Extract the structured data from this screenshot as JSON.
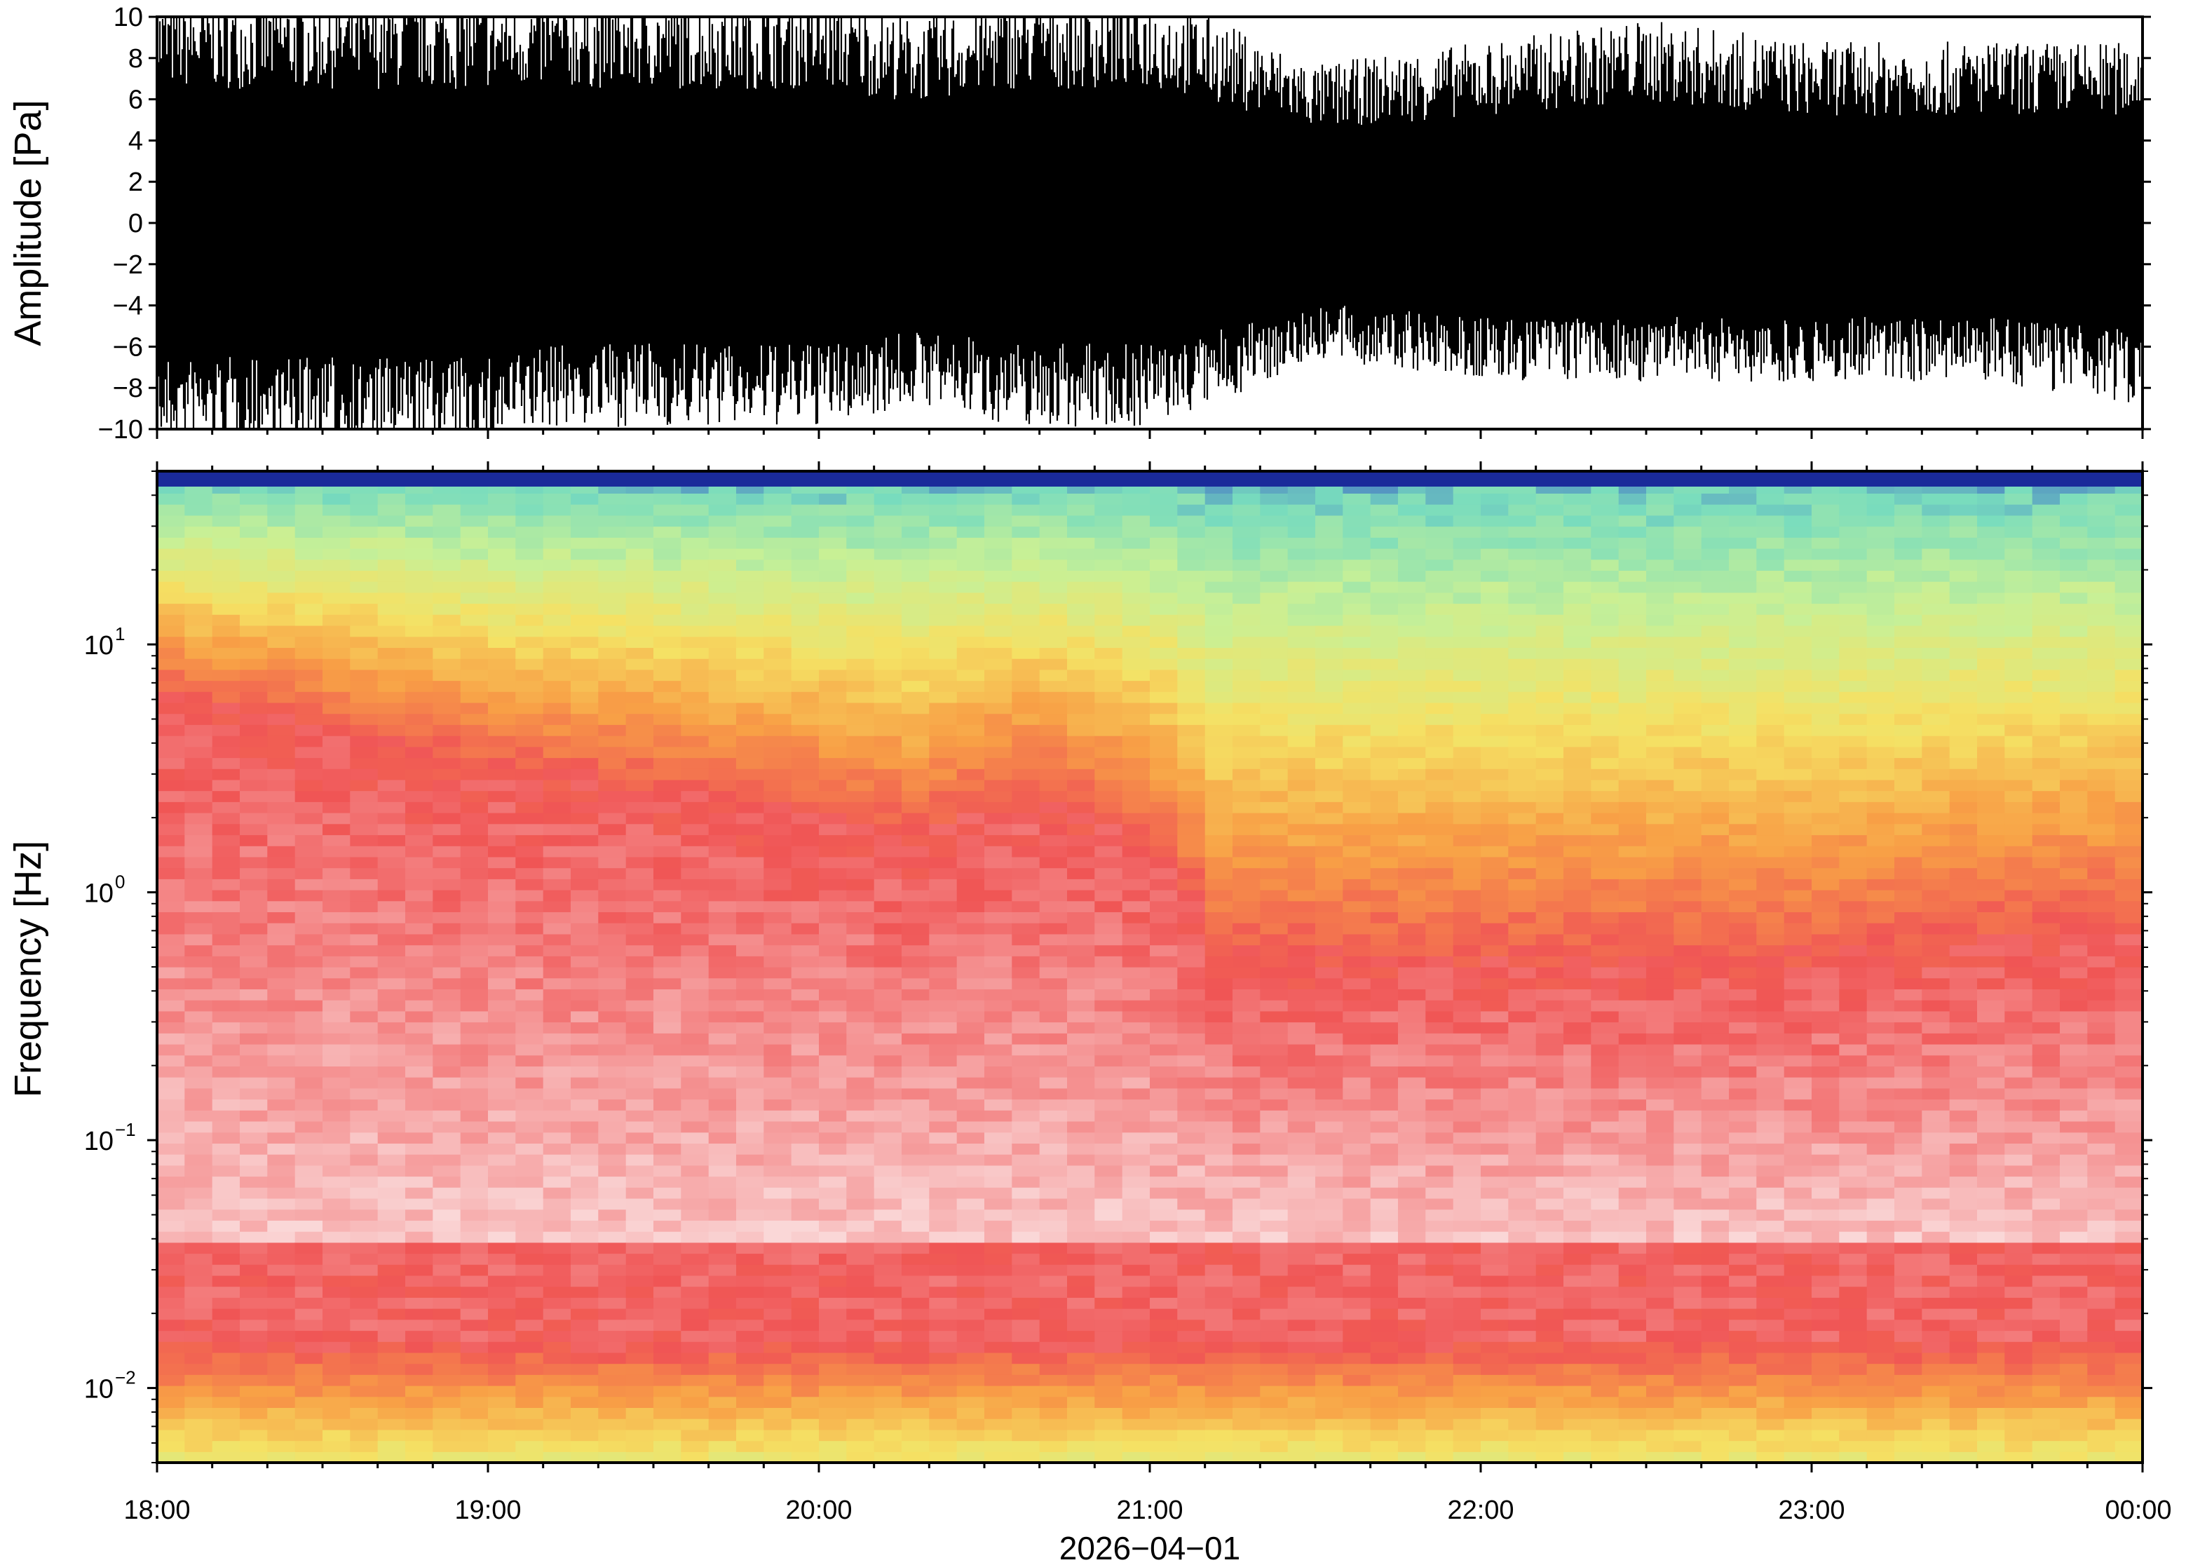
{
  "chart_data": [
    {
      "type": "line",
      "name": "waveform",
      "ylabel": "Amplitude [Pa]",
      "ylim": [
        -10,
        10
      ],
      "yticks": [
        -10,
        -8,
        -6,
        -4,
        -2,
        0,
        2,
        4,
        6,
        8,
        10
      ],
      "ytick_labels": [
        "−10",
        "−8",
        "−6",
        "−4",
        "−2",
        "0",
        "2",
        "4",
        "6",
        "8",
        "10"
      ],
      "x_time_range": [
        "18:00",
        "00:00"
      ],
      "envelope_hours": [
        18.0,
        18.5,
        19.0,
        19.2,
        19.5,
        20.0,
        20.3,
        20.6,
        21.0,
        21.2,
        21.5,
        22.0,
        22.5,
        23.0,
        23.5,
        24.0
      ],
      "envelope_upper": [
        10,
        10,
        10,
        10,
        10,
        10,
        9,
        10,
        10,
        9,
        7,
        8,
        9,
        8,
        8,
        8
      ],
      "envelope_lower": [
        -10,
        -10,
        -10,
        -9,
        -9,
        -9,
        -8,
        -9,
        -9,
        -8,
        -6,
        -7,
        -7,
        -7,
        -7,
        -8
      ],
      "grid": false
    },
    {
      "type": "heatmap",
      "name": "spectrogram",
      "ylabel": "Frequency [Hz]",
      "yscale": "log",
      "ylim": [
        0.005,
        50
      ],
      "yticks": [
        0.01,
        0.1,
        1,
        10
      ],
      "ytick_base": [
        "10",
        "10",
        "10",
        "10"
      ],
      "ytick_exp": [
        "−2",
        "−1",
        "0",
        "1"
      ],
      "xlabel": "2026−04−01",
      "xticks": [
        "18:00",
        "19:00",
        "20:00",
        "21:00",
        "22:00",
        "23:00",
        "00:00"
      ],
      "colormap": "spectral (red = high power, yellow/green = lower power, blue = lowest)",
      "power_profile_hours": [
        18.0,
        19.0,
        20.0,
        20.3,
        20.6,
        21.0,
        21.2,
        22.0,
        23.0,
        24.0
      ],
      "red_band_top_hz": [
        6,
        3,
        2,
        1.5,
        2.5,
        1.5,
        0.5,
        0.5,
        0.5,
        0.7
      ],
      "grid": false
    }
  ]
}
